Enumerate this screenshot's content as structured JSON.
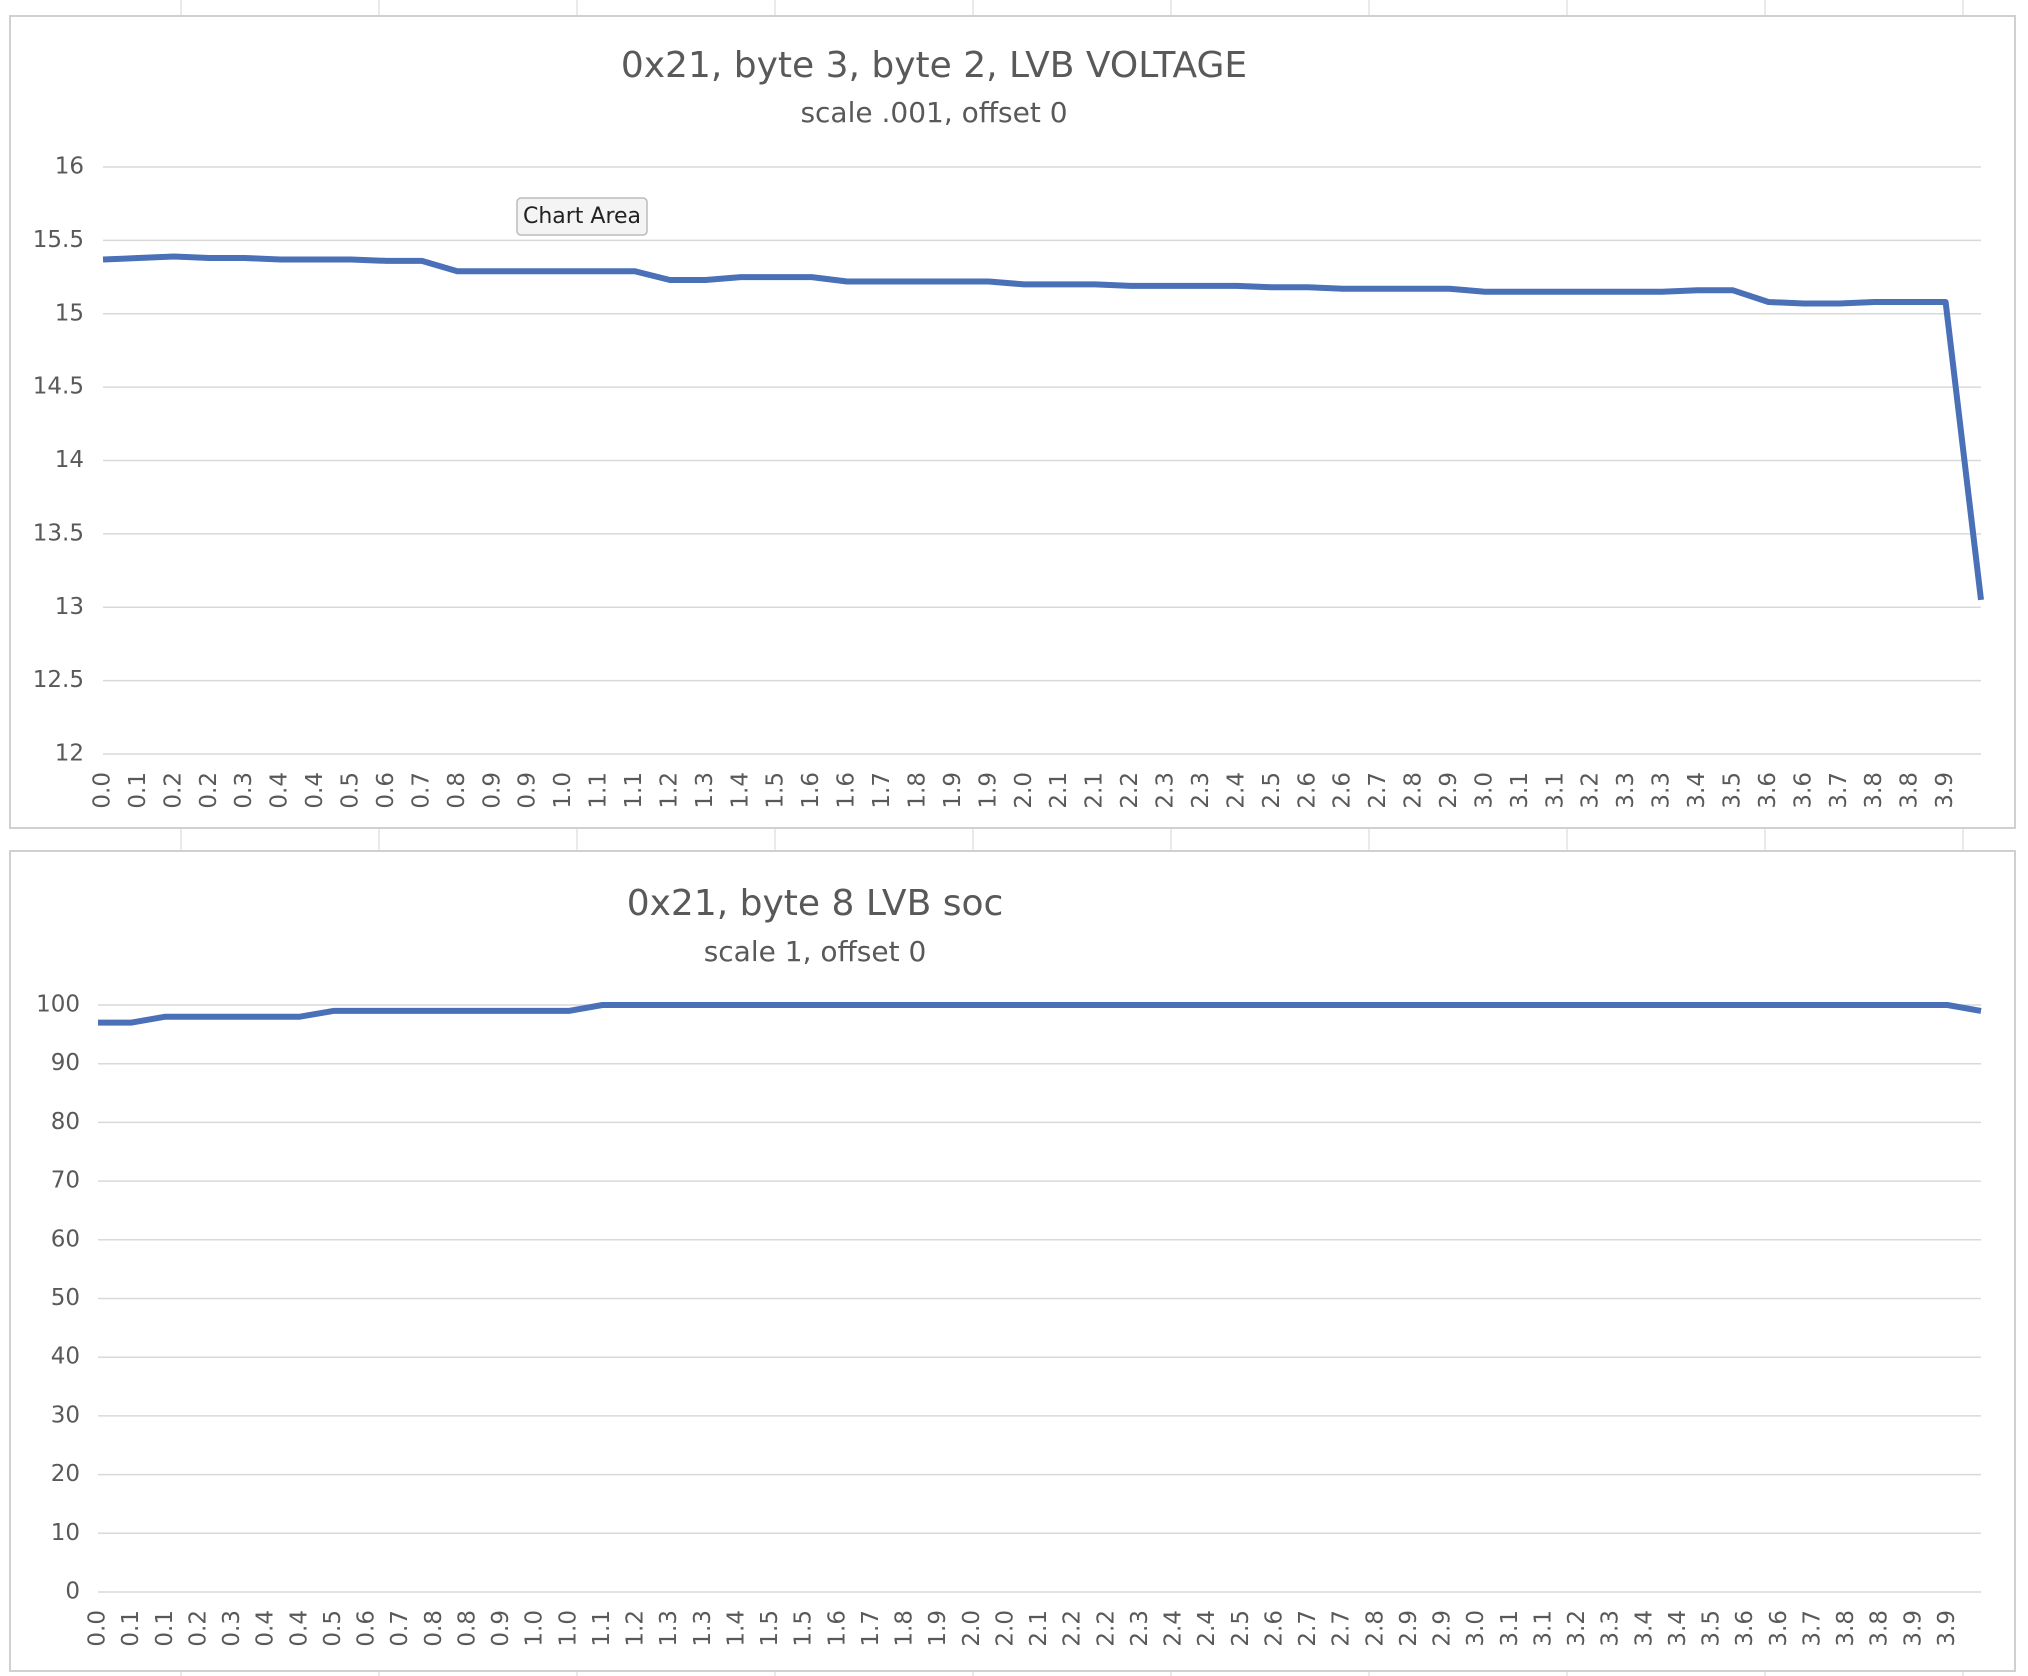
{
  "tooltip": "Chart Area",
  "chart_data": [
    {
      "type": "line",
      "title": "0x21, byte 3, byte 2, LVB VOLTAGE",
      "subtitle": "scale .001, offset 0",
      "categories": [
        "0.0",
        "0.1",
        "0.2",
        "0.2",
        "0.3",
        "0.4",
        "0.4",
        "0.5",
        "0.6",
        "0.7",
        "0.8",
        "0.9",
        "0.9",
        "1.0",
        "1.1",
        "1.1",
        "1.2",
        "1.3",
        "1.4",
        "1.5",
        "1.6",
        "1.6",
        "1.7",
        "1.8",
        "1.9",
        "1.9",
        "2.0",
        "2.1",
        "2.1",
        "2.2",
        "2.3",
        "2.3",
        "2.4",
        "2.5",
        "2.6",
        "2.6",
        "2.7",
        "2.8",
        "2.9",
        "3.0",
        "3.1",
        "3.1",
        "3.2",
        "3.3",
        "3.3",
        "3.4",
        "3.5",
        "3.6",
        "3.6",
        "3.7",
        "3.8",
        "3.8",
        "3.9",
        null
      ],
      "series": [
        {
          "color": "#4a70b8",
          "values": [
            15.37,
            15.38,
            15.39,
            15.38,
            15.38,
            15.37,
            15.37,
            15.37,
            15.36,
            15.36,
            15.29,
            15.29,
            15.29,
            15.29,
            15.29,
            15.29,
            15.23,
            15.23,
            15.25,
            15.25,
            15.25,
            15.22,
            15.22,
            15.22,
            15.22,
            15.22,
            15.2,
            15.2,
            15.2,
            15.19,
            15.19,
            15.19,
            15.19,
            15.18,
            15.18,
            15.17,
            15.17,
            15.17,
            15.17,
            15.15,
            15.15,
            15.15,
            15.15,
            15.15,
            15.15,
            15.16,
            15.16,
            15.08,
            15.07,
            15.07,
            15.08,
            15.08,
            15.08,
            13.05
          ]
        }
      ],
      "ylim": [
        12,
        16
      ],
      "yticks": [
        12,
        12.5,
        13,
        13.5,
        14,
        14.5,
        15,
        15.5,
        16
      ],
      "grid": true
    },
    {
      "type": "line",
      "title": "0x21, byte 8 LVB soc",
      "subtitle": "scale 1, offset 0",
      "categories": [
        "0.0",
        "0.1",
        "0.1",
        "0.2",
        "0.3",
        "0.4",
        "0.4",
        "0.5",
        "0.6",
        "0.7",
        "0.8",
        "0.8",
        "0.9",
        "1.0",
        "1.0",
        "1.1",
        "1.2",
        "1.3",
        "1.3",
        "1.4",
        "1.5",
        "1.5",
        "1.6",
        "1.7",
        "1.8",
        "1.9",
        "2.0",
        "2.0",
        "2.1",
        "2.2",
        "2.2",
        "2.3",
        "2.4",
        "2.4",
        "2.5",
        "2.6",
        "2.7",
        "2.7",
        "2.8",
        "2.9",
        "2.9",
        "3.0",
        "3.1",
        "3.1",
        "3.2",
        "3.3",
        "3.4",
        "3.4",
        "3.5",
        "3.6",
        "3.6",
        "3.7",
        "3.8",
        "3.8",
        "3.9",
        "3.9",
        null
      ],
      "series": [
        {
          "color": "#4a70b8",
          "values": [
            97,
            97,
            98,
            98,
            98,
            98,
            98,
            99,
            99,
            99,
            99,
            99,
            99,
            99,
            99,
            100,
            100,
            100,
            100,
            100,
            100,
            100,
            100,
            100,
            100,
            100,
            100,
            100,
            100,
            100,
            100,
            100,
            100,
            100,
            100,
            100,
            100,
            100,
            100,
            100,
            100,
            100,
            100,
            100,
            100,
            100,
            100,
            100,
            100,
            100,
            100,
            100,
            100,
            100,
            100,
            100,
            99
          ]
        }
      ],
      "ylim": [
        0,
        100
      ],
      "yticks": [
        0,
        10,
        20,
        30,
        40,
        50,
        60,
        70,
        80,
        90,
        100
      ],
      "grid": true
    }
  ]
}
